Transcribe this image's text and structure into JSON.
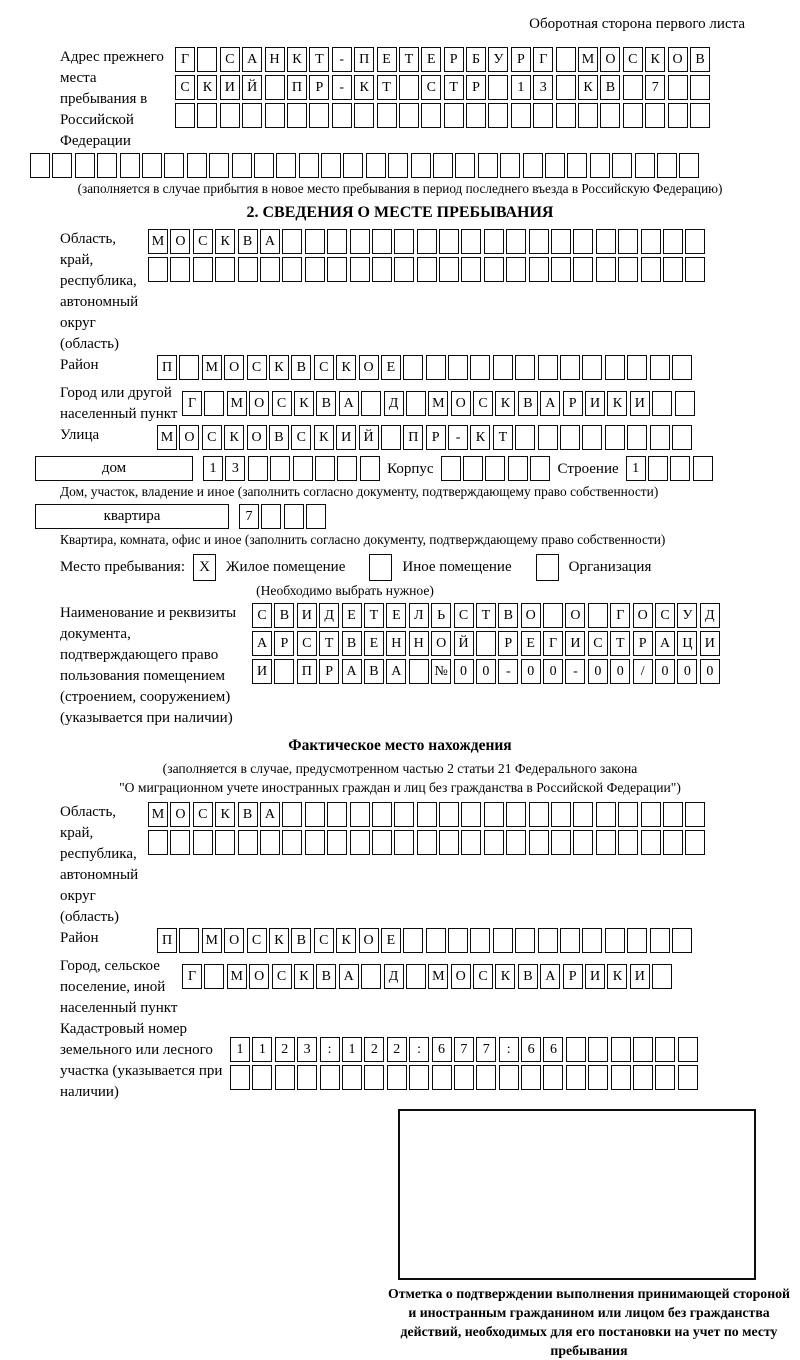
{
  "header": {
    "note": "Оборотная сторона первого листа"
  },
  "colors": {
    "ink": "#0d0d0d",
    "paper": "#ffffff"
  },
  "prev_address": {
    "label": "Адрес прежнего места пребывания в Российской Федерации",
    "rows": [
      {
        "cells": 24,
        "value": "Г САНКТ-ПЕТЕРБУРГ МОСКОВ"
      },
      {
        "cells": 24,
        "value": "СКИЙ ПР-КТ СТР 13 КВ 7"
      },
      {
        "cells": 24,
        "value": ""
      },
      {
        "cells": 30,
        "value": ""
      }
    ],
    "caption": "(заполняется в случае прибытия в новое место пребывания в период последнего въезда в Российскую Федерацию)"
  },
  "section2": {
    "title": "2. СВЕДЕНИЯ О МЕСТЕ ПРЕБЫВАНИЯ",
    "region": {
      "label": "Область, край, республика, автономный округ (область)",
      "rows": [
        {
          "cells": 25,
          "value": "МОСКВА"
        },
        {
          "cells": 25,
          "value": ""
        }
      ]
    },
    "district": {
      "label": "Район",
      "row": {
        "cells": 24,
        "value": "П МОСКВСКОЕ"
      }
    },
    "city": {
      "label": "Город или другой населенный пункт",
      "row": {
        "cells": 23,
        "value": "Г МОСКВА Д МОСКВАРИКИ"
      }
    },
    "street": {
      "label": "Улица",
      "row": {
        "cells": 24,
        "value": "МОСКОВСКИЙ ПР-КТ"
      }
    },
    "house": {
      "box_label": "дом",
      "cells": {
        "cells": 8,
        "value": "13"
      },
      "block_label": "Корпус",
      "block_cells": {
        "cells": 5,
        "value": ""
      },
      "building_label": "Строение",
      "building_cells": {
        "cells": 4,
        "value": "1"
      },
      "caption": "Дом, участок, владение и иное (заполнить согласно документу, подтверждающему право собственности)"
    },
    "apartment": {
      "box_label": "квартира",
      "cells": {
        "cells": 4,
        "value": "7"
      },
      "caption": "Квартира, комната, офис и иное (заполнить согласно документу, подтверждающему право собственности)"
    },
    "residence": {
      "label": "Место пребывания:",
      "options": [
        {
          "label": "Жилое помещение",
          "mark": "X"
        },
        {
          "label": "Иное помещение",
          "mark": ""
        },
        {
          "label": "Организация",
          "mark": ""
        }
      ],
      "note": "(Необходимо выбрать нужное)"
    },
    "document": {
      "label": "Наименование и реквизиты документа, подтверждающего право пользования помещением (строением, сооружением) (указывается при наличии)",
      "rows": [
        {
          "cells": 21,
          "value": "СВИДЕТЕЛЬСТВО О ГОСУД"
        },
        {
          "cells": 21,
          "value": "АРСТВЕННОЙ РЕГИСТРАЦИ"
        },
        {
          "cells": 21,
          "value": "И ПРАВА №00-00-00/000"
        }
      ]
    }
  },
  "actual_location": {
    "title": "Фактическое место нахождения",
    "note1": "(заполняется в случае, предусмотренном частью 2 статьи 21 Федерального закона",
    "note2": "\"О миграционном учете иностранных граждан и лиц без гражданства в Российской Федерации\")",
    "region": {
      "label": "Область, край, республика, автономный округ (область)",
      "rows": [
        {
          "cells": 25,
          "value": "МОСКВА"
        },
        {
          "cells": 25,
          "value": ""
        }
      ]
    },
    "district": {
      "label": "Район",
      "row": {
        "cells": 24,
        "value": "П МОСКВСКОЕ"
      }
    },
    "city": {
      "label": "Город, сельское поселение, иной населенный пункт",
      "row": {
        "cells": 22,
        "value": "Г МОСКВА Д МОСКВАРИКИ"
      }
    },
    "cadastral": {
      "label": "Кадастровый номер земельного или лесного участка (указывается при наличии)",
      "rows": [
        {
          "cells": 21,
          "value": "1123:122:677:66"
        },
        {
          "cells": 21,
          "value": ""
        }
      ]
    }
  },
  "confirmation": {
    "caption": "Отметка о подтверждении выполнения принимающей стороной и иностранным гражданином или лицом без гражданства действий, необходимых для его постановки на учет по месту пребывания"
  }
}
